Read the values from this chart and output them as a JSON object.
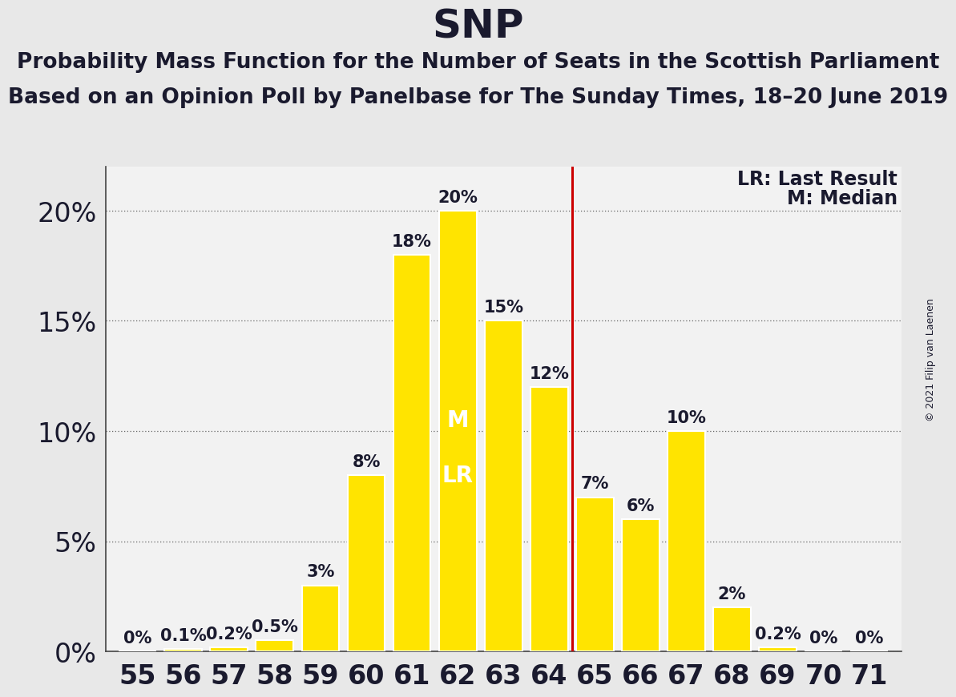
{
  "title": "SNP",
  "subtitle1": "Probability Mass Function for the Number of Seats in the Scottish Parliament",
  "subtitle2": "Based on an Opinion Poll by Panelbase for The Sunday Times, 18–20 June 2019",
  "copyright": "© 2021 Filip van Laenen",
  "seats": [
    55,
    56,
    57,
    58,
    59,
    60,
    61,
    62,
    63,
    64,
    65,
    66,
    67,
    68,
    69,
    70,
    71
  ],
  "probabilities": [
    0.0,
    0.1,
    0.2,
    0.5,
    3.0,
    8.0,
    18.0,
    20.0,
    15.0,
    12.0,
    7.0,
    6.0,
    10.0,
    2.0,
    0.2,
    0.0,
    0.0
  ],
  "bar_color": "#FFE400",
  "bar_edge_color": "#FFFFFF",
  "last_result": 64.5,
  "median_seat": 62,
  "lr_line_color": "#CC0000",
  "background_color": "#E8E8E8",
  "plot_bg_color": "#F2F2F2",
  "ylabel_ticks": [
    0,
    5,
    10,
    15,
    20
  ],
  "legend_lr": "LR: Last Result",
  "legend_m": "M: Median",
  "text_color": "#1A1A2E",
  "title_fontsize": 36,
  "subtitle_fontsize": 19,
  "tick_fontsize": 24,
  "bar_label_fontsize": 15,
  "legend_fontsize": 17,
  "ml_fontsize": 20,
  "copyright_fontsize": 9
}
